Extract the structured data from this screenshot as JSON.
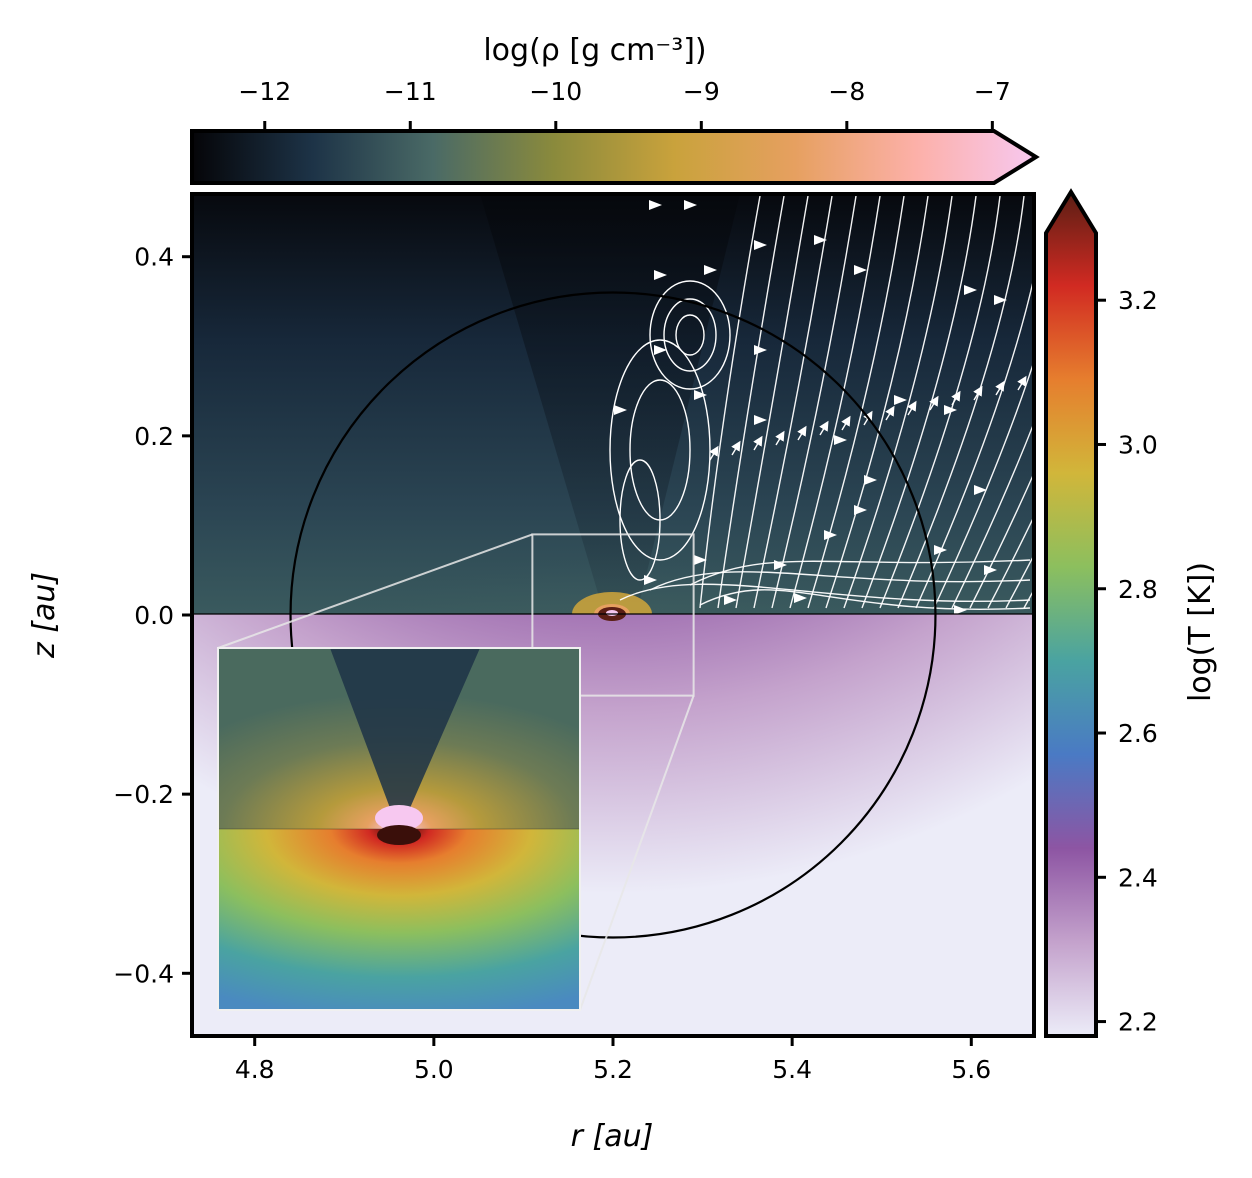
{
  "chart_data": {
    "type": "heatmap",
    "title": "",
    "xlabel": "r [au]",
    "ylabel": "z [au]",
    "xlim": [
      4.73,
      5.67
    ],
    "ylim": [
      -0.47,
      0.47
    ],
    "x_ticks": [
      4.8,
      5.0,
      5.2,
      5.4,
      5.6
    ],
    "x_tick_labels": [
      "4.8",
      "5.0",
      "5.2",
      "5.4",
      "5.6"
    ],
    "y_ticks": [
      0.4,
      0.2,
      0.0,
      -0.2,
      -0.4
    ],
    "y_tick_labels": [
      "0.4",
      "0.2",
      "0.0",
      "−0.2",
      "−0.4"
    ],
    "top_half": {
      "quantity": "density",
      "colorbar_label": "log(ρ [g cm⁻³])",
      "colorbar_range": [
        -12.5,
        -6.7
      ],
      "colorbar_ticks": [
        -12,
        -11,
        -10,
        -9,
        -8,
        -7
      ],
      "colorbar_tick_labels": [
        "−12",
        "−11",
        "−10",
        "−9",
        "−8",
        "−7"
      ],
      "colorbar_extend": "max",
      "colorbar_position": "top",
      "colormap": [
        "#050508",
        "#1d3347",
        "#4a6a66",
        "#8a8a3c",
        "#c9a23c",
        "#e6a060",
        "#fcb0a8",
        "#f7c8f0"
      ],
      "streamlines": true
    },
    "bottom_half": {
      "quantity": "temperature",
      "colorbar_label": "log(T [K])",
      "colorbar_range": [
        2.18,
        3.35
      ],
      "colorbar_ticks": [
        2.2,
        2.4,
        2.6,
        2.8,
        3.0,
        3.2
      ],
      "colorbar_tick_labels": [
        "2.2",
        "2.4",
        "2.6",
        "2.8",
        "3.0",
        "3.2"
      ],
      "colorbar_extend": "max",
      "colorbar_position": "right",
      "colormap": [
        "#ececf8",
        "#c4a2cc",
        "#8d55a3",
        "#4a7ac4",
        "#4aa3a1",
        "#8cbf5e",
        "#d1b63a",
        "#e67e2e",
        "#d12a22",
        "#5a1e14"
      ]
    },
    "planet": {
      "r": 5.2,
      "z": 0.0
    },
    "hill_sphere": {
      "center_r": 5.2,
      "center_z": 0.0,
      "radius": 0.36
    },
    "inset": {
      "zoom_region_r": [
        5.11,
        5.29
      ],
      "zoom_region_z": [
        -0.09,
        0.09
      ],
      "location": "lower-left"
    }
  }
}
